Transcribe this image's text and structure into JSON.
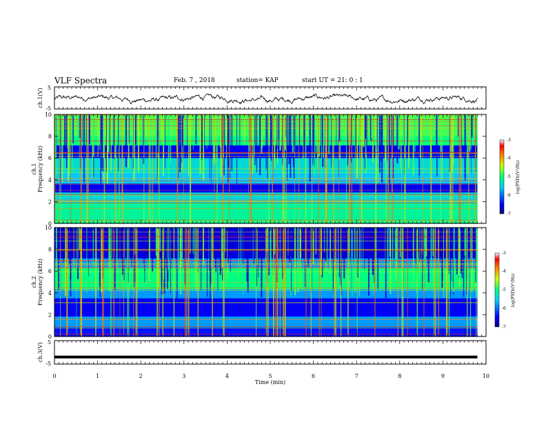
{
  "header": {
    "title": "VLF Spectra",
    "date": "Feb. 7 , 2018",
    "station": "station= KAP",
    "start_ut": "start  UT  =   21: 0  : 1"
  },
  "chart_data": [
    {
      "type": "line",
      "title": "",
      "xlabel": "",
      "ylabel": "ch.1(V)",
      "ylim": [
        -5,
        5
      ],
      "y_ticks": [
        "5",
        "-5"
      ],
      "xlim": [
        0,
        10
      ],
      "series": [
        {
          "values_description": "noisy waveform fluctuating roughly between -2.5 and 1.5 V",
          "x_range": [
            0,
            9.8
          ]
        }
      ],
      "line_color": "#000000"
    },
    {
      "type": "heatmap",
      "title": "",
      "xlabel": "",
      "ylabel": "ch.1\nFrequency (kHz)",
      "ylim": [
        0,
        10
      ],
      "y_ticks": [
        "0",
        "2",
        "4",
        "6",
        "8",
        "10"
      ],
      "xlim": [
        0,
        10
      ],
      "colorbar": {
        "label": "log(PSD)(V²/Hz)",
        "ticks": [
          "-3",
          "-4",
          "-5",
          "-6",
          "-7"
        ],
        "range": [
          -7,
          -3
        ]
      }
    },
    {
      "type": "heatmap",
      "title": "",
      "xlabel": "",
      "ylabel": "ch.2\nFrequency (kHz)",
      "ylim": [
        0,
        10
      ],
      "y_ticks": [
        "0",
        "2",
        "4",
        "6",
        "8",
        "10"
      ],
      "xlim": [
        0,
        10
      ],
      "colorbar": {
        "label": "log(PSD)(V²/Hz)",
        "ticks": [
          "-3",
          "-4",
          "-5",
          "-6",
          "-7"
        ],
        "range": [
          -7,
          -3
        ]
      }
    },
    {
      "type": "line",
      "title": "",
      "xlabel": "Time  (min)",
      "ylabel": "ch.3(V)",
      "ylim": [
        -5,
        5
      ],
      "y_ticks": [
        "5",
        "-5"
      ],
      "xlim": [
        0,
        10
      ],
      "x_ticks": [
        "0",
        "1",
        "2",
        "3",
        "4",
        "5",
        "6",
        "7",
        "8",
        "9",
        "10"
      ],
      "series": [
        {
          "values_description": "constant at about -2 V",
          "constant_value": -2,
          "x_range": [
            0,
            9.8
          ]
        }
      ],
      "line_color": "#000000"
    }
  ]
}
